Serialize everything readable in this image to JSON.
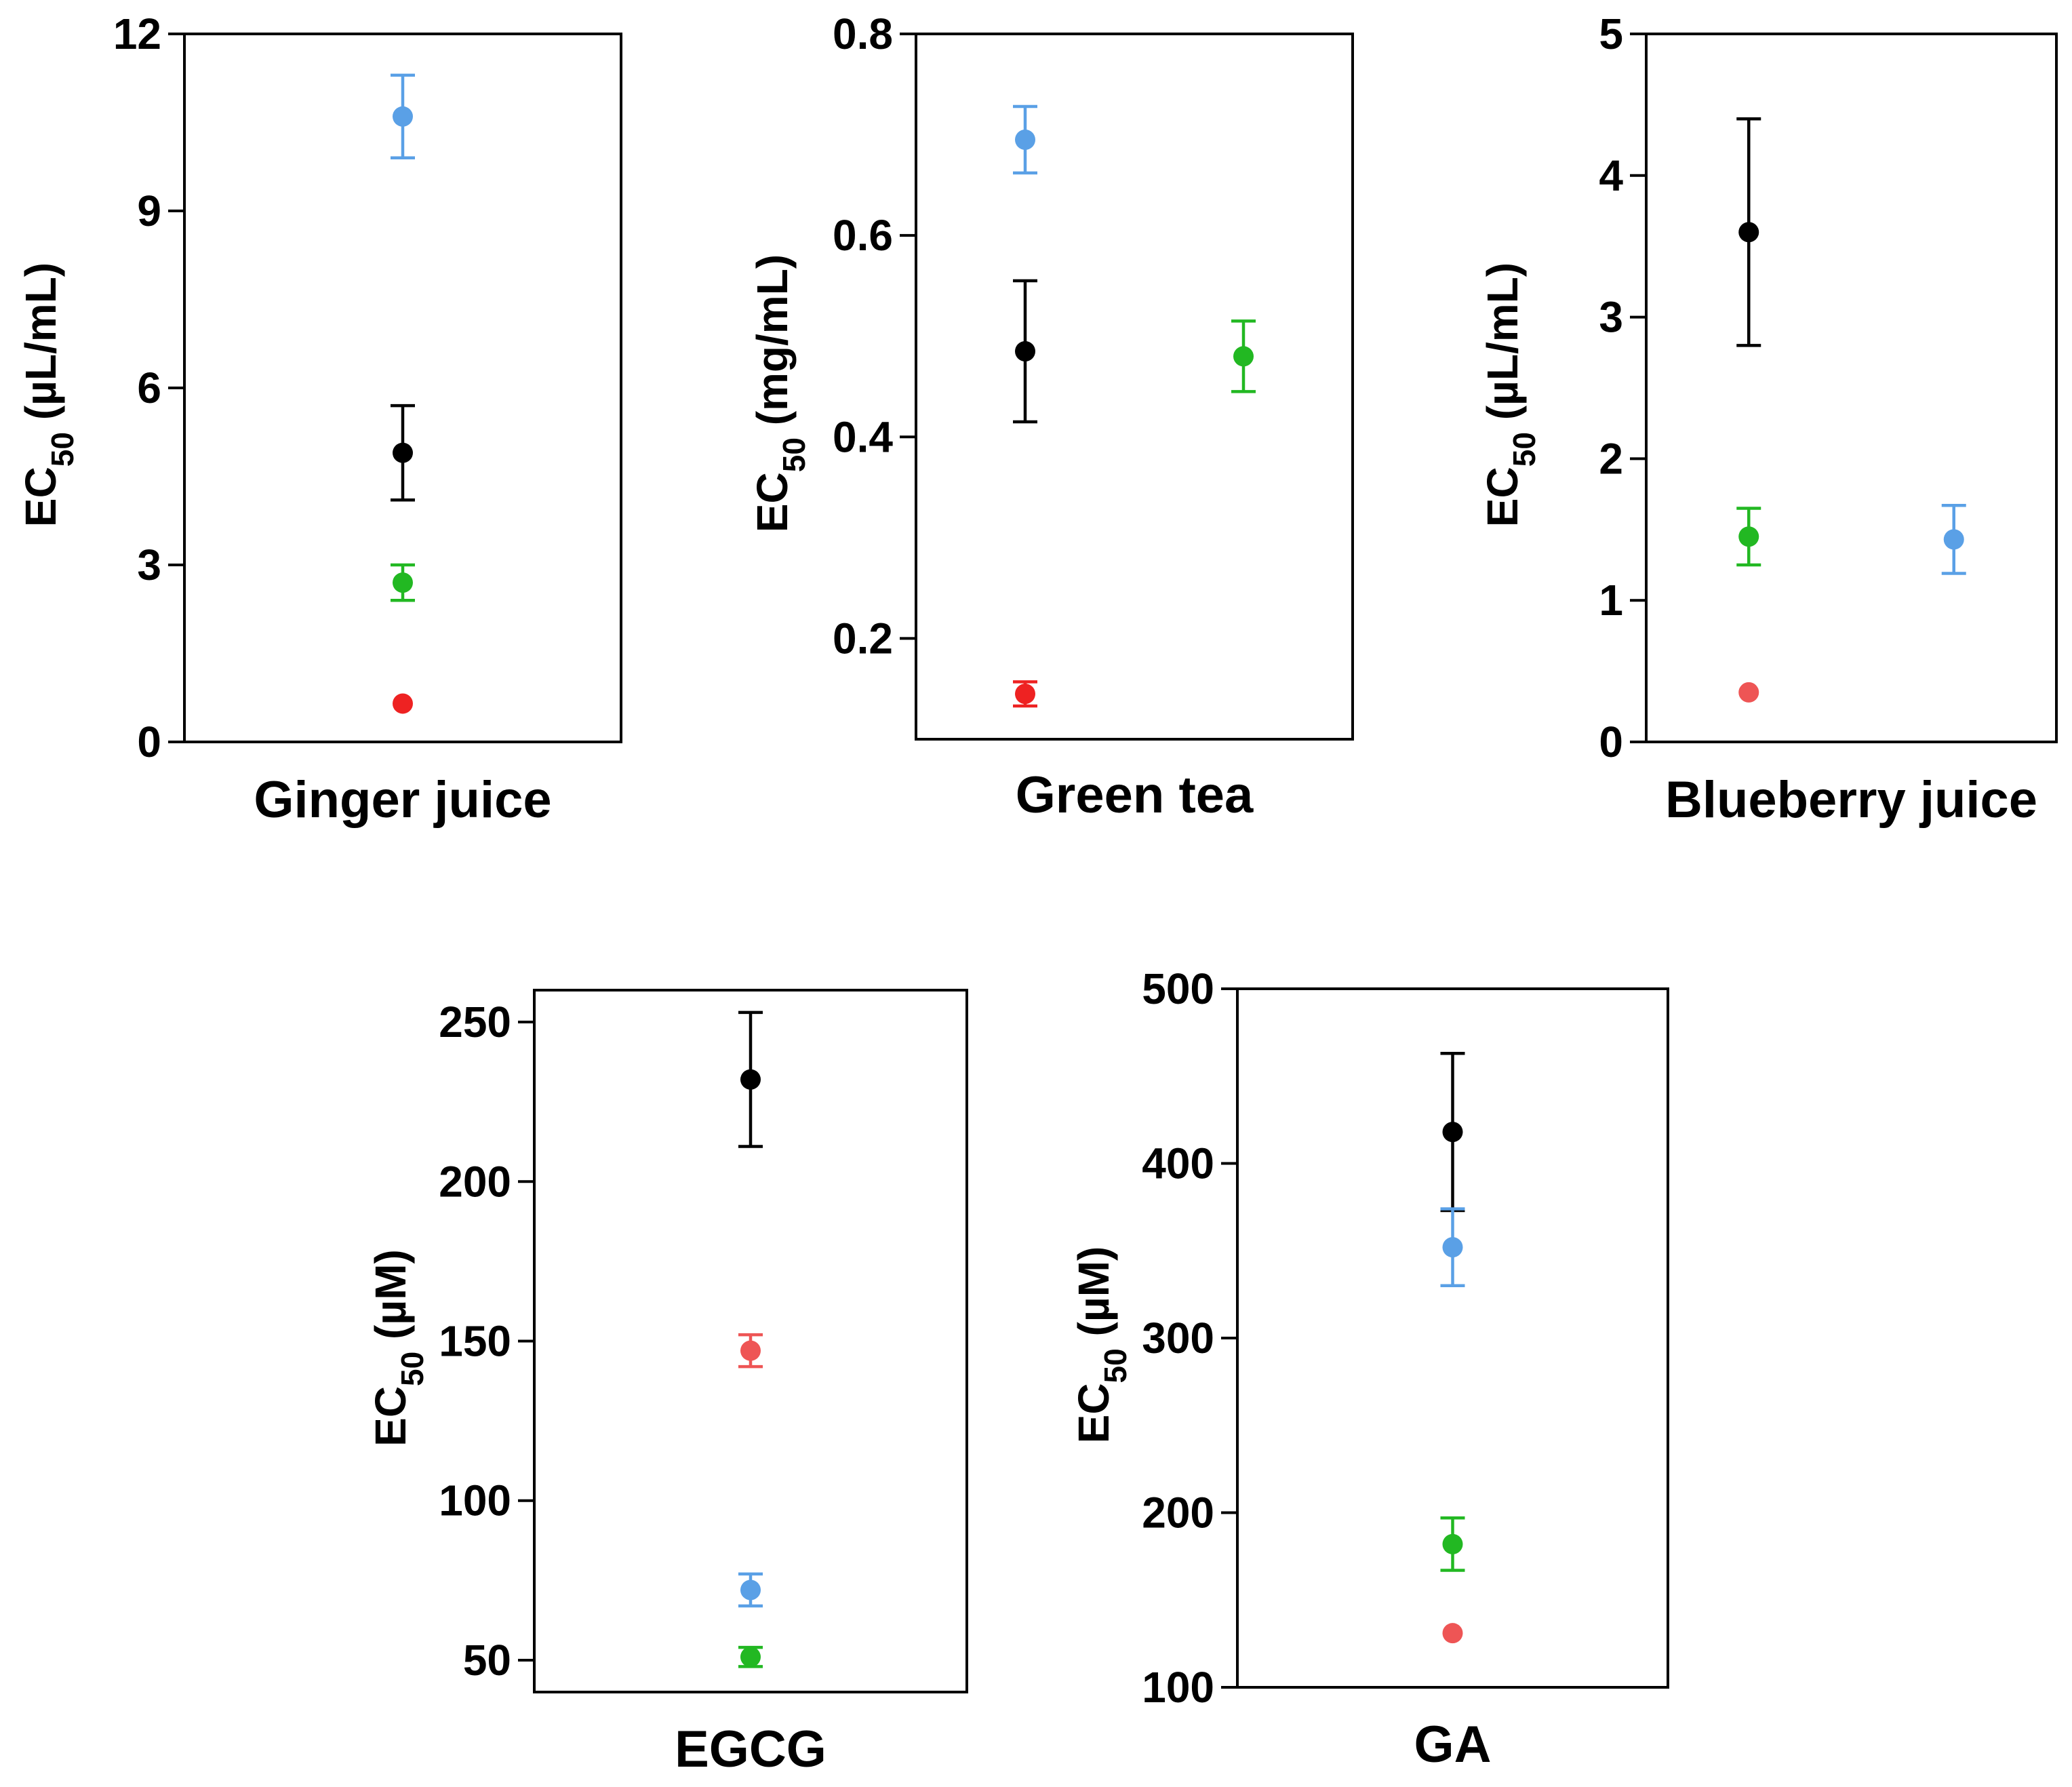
{
  "chart_data": [
    {
      "type": "scatter",
      "title": "Ginger juice",
      "ylabel": {
        "main": "EC",
        "sub": "50",
        "unit": " (µL/mL)"
      },
      "ylim": [
        0,
        12
      ],
      "yticks": [
        0,
        3,
        6,
        9,
        12
      ],
      "x": [
        0,
        1,
        2
      ],
      "points": [
        {
          "x": 1,
          "y": 10.6,
          "err": 0.7,
          "color": "#5aa0e6"
        },
        {
          "x": 1,
          "y": 4.9,
          "err": 0.8,
          "color": "#000000"
        },
        {
          "x": 1,
          "y": 2.7,
          "err": 0.3,
          "color": "#22b822"
        },
        {
          "x": 1,
          "y": 0.65,
          "err": 0,
          "color": "#ee2222"
        }
      ]
    },
    {
      "type": "scatter",
      "title": "Green tea",
      "ylabel": {
        "main": "EC",
        "sub": "50",
        "unit": " (mg/mL)"
      },
      "ylim": [
        0.1,
        0.8
      ],
      "yticks": [
        0.2,
        0.4,
        0.6,
        0.8
      ],
      "x": [
        0,
        1,
        2
      ],
      "points": [
        {
          "x": 0.5,
          "y": 0.695,
          "err": 0.033,
          "color": "#5aa0e6"
        },
        {
          "x": 0.5,
          "y": 0.485,
          "err": 0.07,
          "color": "#000000"
        },
        {
          "x": 1.5,
          "y": 0.48,
          "err": 0.035,
          "color": "#22b822"
        },
        {
          "x": 0.5,
          "y": 0.145,
          "err": 0.012,
          "color": "#ee2222"
        }
      ]
    },
    {
      "type": "scatter",
      "title": "Blueberry juice",
      "ylabel": {
        "main": "EC",
        "sub": "50",
        "unit": " (µL/mL)"
      },
      "ylim": [
        0,
        5
      ],
      "yticks": [
        0,
        1,
        2,
        3,
        4,
        5
      ],
      "x": [
        0,
        1,
        2
      ],
      "points": [
        {
          "x": 0.5,
          "y": 3.6,
          "err": 0.8,
          "color": "#000000"
        },
        {
          "x": 0.5,
          "y": 1.45,
          "err": 0.2,
          "color": "#22b822"
        },
        {
          "x": 1.5,
          "y": 1.43,
          "err": 0.24,
          "color": "#5aa0e6"
        },
        {
          "x": 0.5,
          "y": 0.35,
          "err": 0,
          "color": "#ee5555"
        }
      ]
    },
    {
      "type": "scatter",
      "title": "EGCG",
      "ylabel": {
        "main": "EC",
        "sub": "50",
        "unit": " (µM)"
      },
      "ylim": [
        40,
        260
      ],
      "yticks": [
        50,
        100,
        150,
        200,
        250
      ],
      "x": [
        0,
        1,
        2
      ],
      "points": [
        {
          "x": 1,
          "y": 232,
          "err": 21,
          "color": "#000000"
        },
        {
          "x": 1,
          "y": 147,
          "err": 5,
          "color": "#ee5555"
        },
        {
          "x": 1,
          "y": 72,
          "err": 5,
          "color": "#5aa0e6"
        },
        {
          "x": 1,
          "y": 51,
          "err": 3,
          "color": "#22b822"
        }
      ]
    },
    {
      "type": "scatter",
      "title": "GA",
      "ylabel": {
        "main": "EC",
        "sub": "50",
        "unit": " (µM)"
      },
      "ylim": [
        100,
        500
      ],
      "yticks": [
        100,
        200,
        300,
        400,
        500
      ],
      "x": [
        0,
        1,
        2
      ],
      "points": [
        {
          "x": 1,
          "y": 418,
          "err": 45,
          "color": "#000000"
        },
        {
          "x": 1,
          "y": 352,
          "err": 22,
          "color": "#5aa0e6"
        },
        {
          "x": 1,
          "y": 182,
          "err": 15,
          "color": "#22b822"
        },
        {
          "x": 1,
          "y": 131,
          "err": 0,
          "color": "#ee5555"
        }
      ]
    }
  ]
}
